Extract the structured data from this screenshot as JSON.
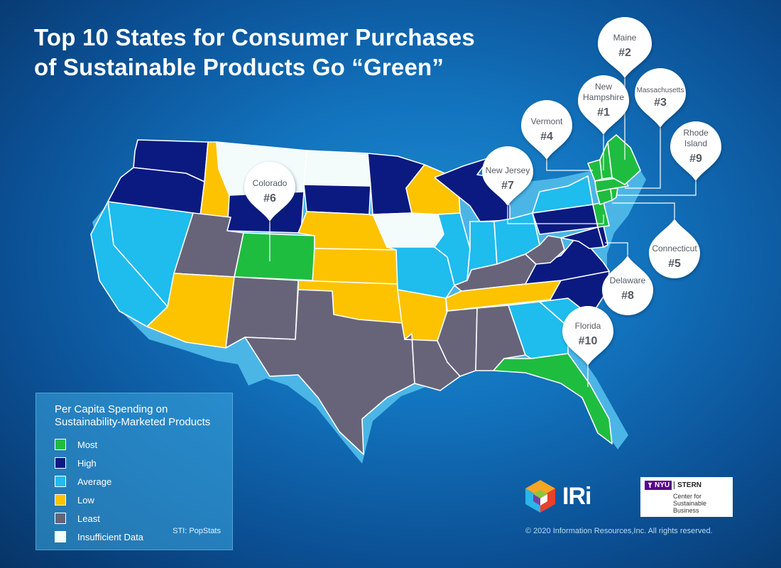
{
  "title": {
    "line1": "Top 10 States for Consumer Purchases",
    "line2": "of Sustainable Products Go “Green”"
  },
  "colors": {
    "most": "#1fbd3f",
    "high": "#0a1a80",
    "average": "#1fbcee",
    "low": "#fdc300",
    "least": "#67647a",
    "insufficient": "#f3fbfb",
    "edge": "#2a9fd8"
  },
  "callouts": [
    {
      "state": "Maine",
      "rank": "#2"
    },
    {
      "state": "Massachusetts",
      "rank": "#3"
    },
    {
      "state_line1": "New",
      "state_line2": "Hampshire",
      "rank": "#1"
    },
    {
      "state": "Vermont",
      "rank": "#4"
    },
    {
      "state_line1": "Rhode",
      "state_line2": "Island",
      "rank": "#9"
    },
    {
      "state": "New Jersey",
      "rank": "#7"
    },
    {
      "state": "Colorado",
      "rank": "#6"
    },
    {
      "state": "Connecticut",
      "rank": "#5"
    },
    {
      "state": "Delaware",
      "rank": "#8"
    },
    {
      "state": "Florida",
      "rank": "#10"
    }
  ],
  "legend": {
    "title_line1": "Per Capita Spending on",
    "title_line2": "Sustainability-Marketed Products",
    "items": [
      {
        "label": "Most",
        "color": "#1fbd3f"
      },
      {
        "label": "High",
        "color": "#0a1a80"
      },
      {
        "label": "Average",
        "color": "#1fbcee"
      },
      {
        "label": "Low",
        "color": "#fdc300"
      },
      {
        "label": "Least",
        "color": "#67647a"
      },
      {
        "label": "Insufficient Data",
        "color": "#f3fbfb"
      }
    ],
    "source": "STI: PopStats"
  },
  "logos": {
    "iri": "IRi",
    "nyu": "NYU",
    "stern": "STERN",
    "nyu_sub_line1": "Center for",
    "nyu_sub_line2": "Sustainable Business"
  },
  "copyright": "© 2020 Information Resources,Inc. All rights reserved."
}
